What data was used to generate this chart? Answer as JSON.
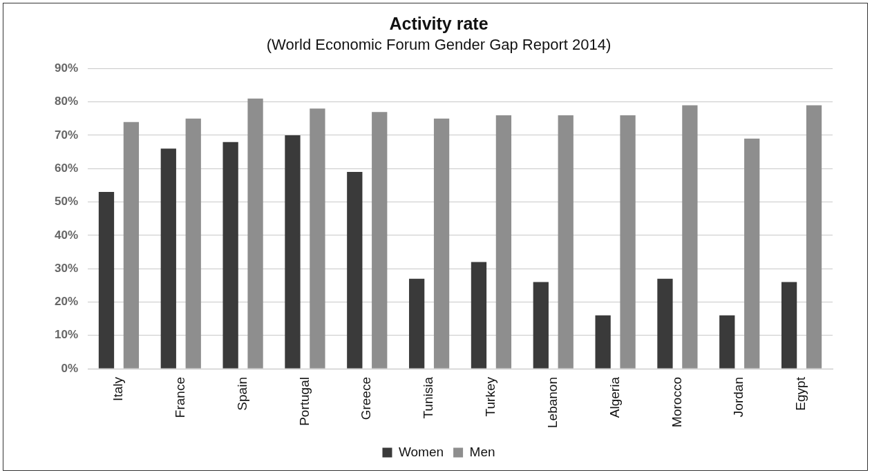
{
  "chart_data": {
    "type": "bar",
    "title": "Activity rate",
    "subtitle": "(World Economic Forum Gender Gap Report 2014)",
    "categories": [
      "Italy",
      "France",
      "Spain",
      "Portugal",
      "Greece",
      "Tunisia",
      "Turkey",
      "Lebanon",
      "Algeria",
      "Morocco",
      "Jordan",
      "Egypt"
    ],
    "series": [
      {
        "name": "Women",
        "color": "#3a3a3a",
        "values": [
          53,
          66,
          68,
          70,
          59,
          27,
          32,
          26,
          16,
          27,
          16,
          26
        ]
      },
      {
        "name": "Men",
        "color": "#8e8e8e",
        "values": [
          74,
          75,
          81,
          78,
          77,
          75,
          76,
          76,
          76,
          79,
          69,
          79
        ]
      }
    ],
    "ylim": [
      0,
      90
    ],
    "yticks": [
      {
        "value": 0,
        "label": "0%"
      },
      {
        "value": 10,
        "label": "10%"
      },
      {
        "value": 20,
        "label": "20%"
      },
      {
        "value": 30,
        "label": "30%"
      },
      {
        "value": 40,
        "label": "40%"
      },
      {
        "value": 50,
        "label": "50%"
      },
      {
        "value": 60,
        "label": "60%"
      },
      {
        "value": 70,
        "label": "70%"
      },
      {
        "value": 80,
        "label": "80%"
      },
      {
        "value": 90,
        "label": "90%"
      }
    ],
    "grid": "y",
    "legend": "bottom"
  }
}
